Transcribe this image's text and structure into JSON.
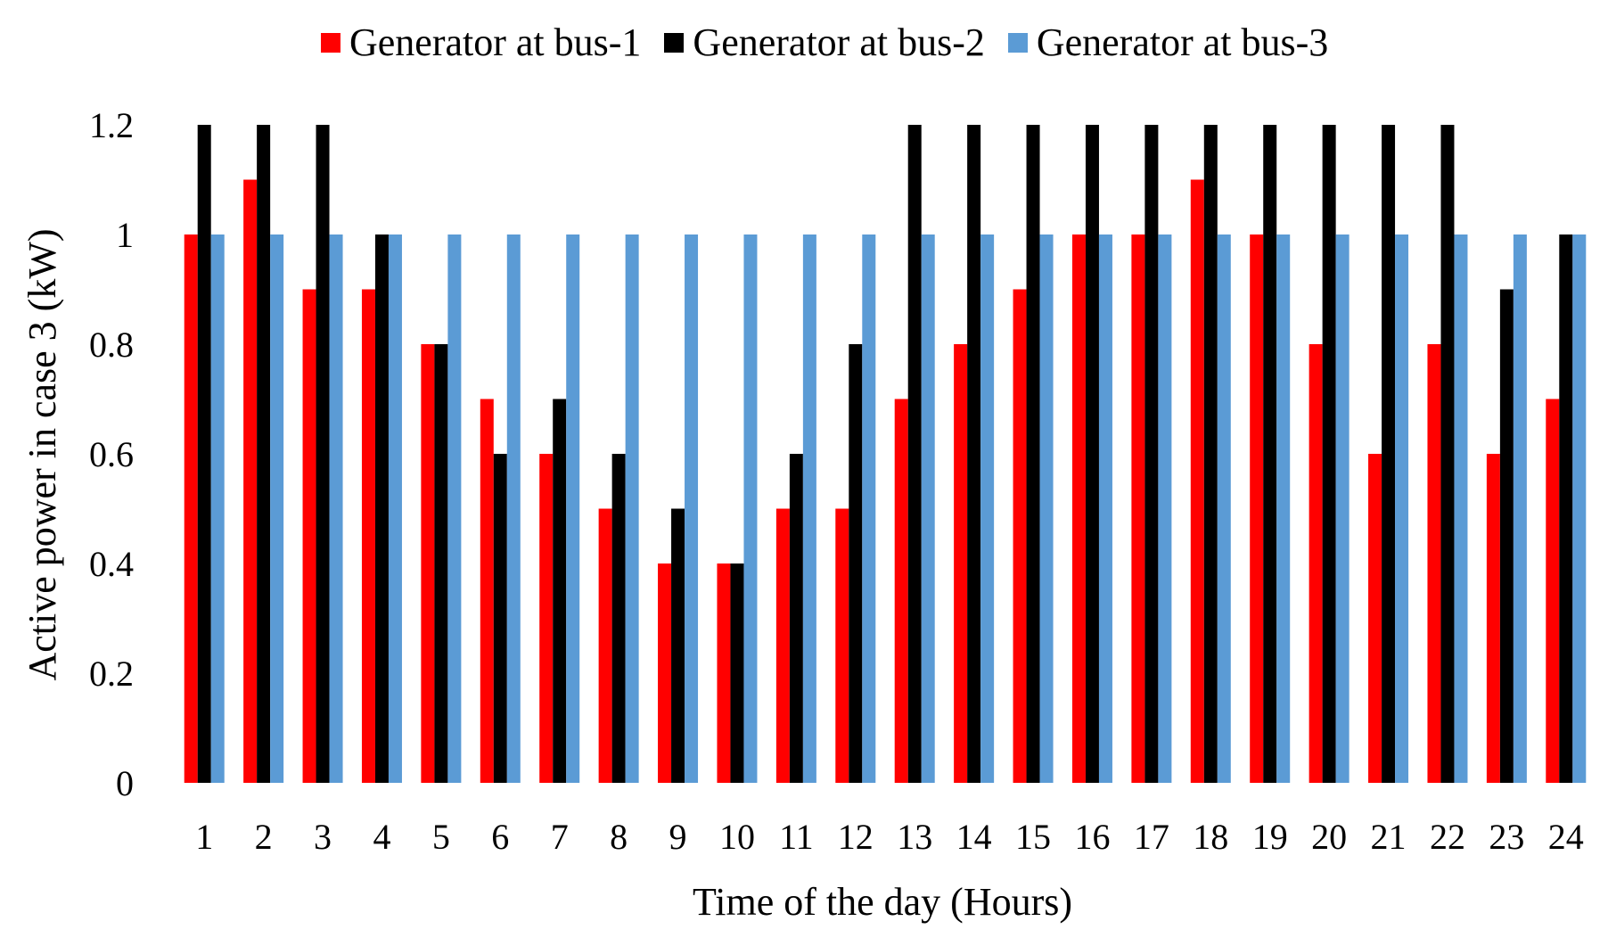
{
  "chart_data": {
    "type": "bar",
    "title": "",
    "xlabel": "Time of the day (Hours)",
    "ylabel": "Active power in case 3 (kW)",
    "ylim": [
      0,
      1.2
    ],
    "yticks": [
      "0",
      "0.2",
      "0.4",
      "0.6",
      "0.8",
      "1",
      "1.2"
    ],
    "grid": false,
    "legend_position": "top",
    "categories": [
      "1",
      "2",
      "3",
      "4",
      "5",
      "6",
      "7",
      "8",
      "9",
      "10",
      "11",
      "12",
      "13",
      "14",
      "15",
      "16",
      "17",
      "18",
      "19",
      "20",
      "21",
      "22",
      "23",
      "24"
    ],
    "series": [
      {
        "name": "Generator at bus-1",
        "color": "#ff0000",
        "values": [
          1.0,
          1.1,
          0.9,
          0.9,
          0.8,
          0.7,
          0.6,
          0.5,
          0.4,
          0.4,
          0.5,
          0.5,
          0.7,
          0.8,
          0.9,
          1.0,
          1.0,
          1.1,
          1.0,
          0.8,
          0.6,
          0.8,
          0.6,
          0.7
        ]
      },
      {
        "name": "Generator at bus-2",
        "color": "#000000",
        "values": [
          1.2,
          1.2,
          1.2,
          1.0,
          0.8,
          0.6,
          0.7,
          0.6,
          0.5,
          0.4,
          0.6,
          0.8,
          1.2,
          1.2,
          1.2,
          1.2,
          1.2,
          1.2,
          1.2,
          1.2,
          1.2,
          1.2,
          0.9,
          1.0
        ]
      },
      {
        "name": "Generator at bus-3",
        "color": "#5b9bd5",
        "values": [
          1.0,
          1.0,
          1.0,
          1.0,
          1.0,
          1.0,
          1.0,
          1.0,
          1.0,
          1.0,
          1.0,
          1.0,
          1.0,
          1.0,
          1.0,
          1.0,
          1.0,
          1.0,
          1.0,
          1.0,
          1.0,
          1.0,
          1.0,
          1.0
        ]
      }
    ]
  }
}
